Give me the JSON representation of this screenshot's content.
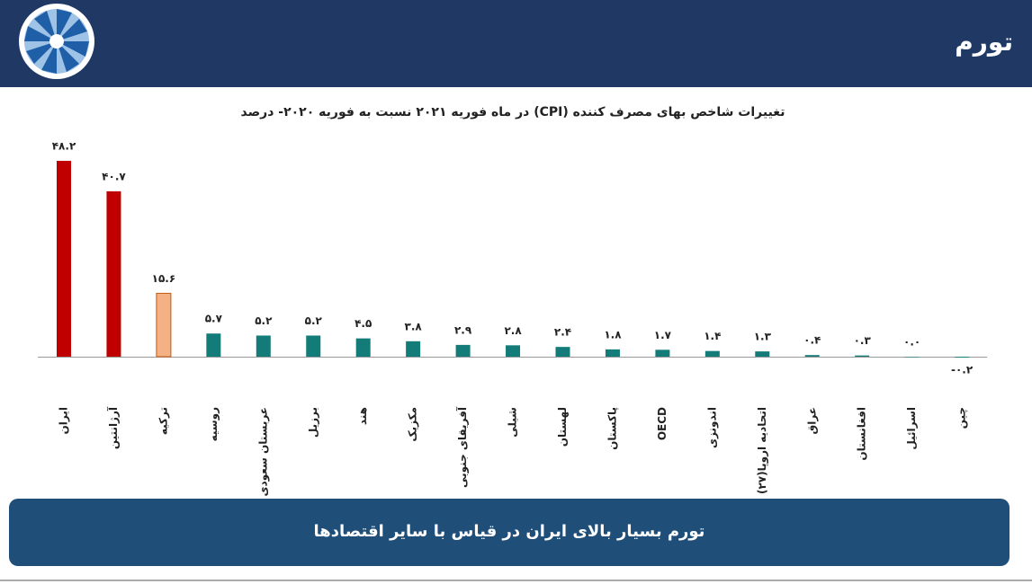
{
  "header": {
    "title": "تورم"
  },
  "chart_data": {
    "type": "bar",
    "title": "تغییرات شاخص بهای مصرف کننده (CPI)  در ماه فوریه ۲۰۲۱ نسبت به فوریه ۲۰۲۰- درصد",
    "categories": [
      "ایران",
      "آرژانتین",
      "ترکیه",
      "روسیه",
      "عربستان سعودی",
      "برزیل",
      "هند",
      "مکزیک",
      "آفریقای جنوبی",
      "شیلی",
      "لهستان",
      "پاکستان",
      "OECD",
      "اندونزی",
      "اتحادیه اروپا(۲۷)",
      "عراق",
      "افغانستان",
      "اسرائیل",
      "چین"
    ],
    "values": [
      48.2,
      40.7,
      15.6,
      5.7,
      5.2,
      5.2,
      4.5,
      3.8,
      2.9,
      2.8,
      2.4,
      1.8,
      1.7,
      1.4,
      1.3,
      0.4,
      0.3,
      0.0,
      -0.2
    ],
    "value_labels": [
      "۴۸.۲",
      "۴۰.۷",
      "۱۵.۶",
      "۵.۷",
      "۵.۲",
      "۵.۲",
      "۴.۵",
      "۳.۸",
      "۲.۹",
      "۲.۸",
      "۲.۴",
      "۱.۸",
      "۱.۷",
      "۱.۴",
      "۱.۳",
      "۰.۴",
      "۰.۳",
      "۰.۰",
      "-۰.۲"
    ],
    "colors": [
      "#c00000",
      "#c00000",
      "#f4b183",
      "#137b78",
      "#137b78",
      "#137b78",
      "#137b78",
      "#137b78",
      "#137b78",
      "#137b78",
      "#137b78",
      "#137b78",
      "#137b78",
      "#137b78",
      "#137b78",
      "#137b78",
      "#137b78",
      "#137b78",
      "#137b78"
    ]
  },
  "footer": {
    "text": "تورم بسیار بالای ایران در قیاس با سایر اقتصادها"
  }
}
